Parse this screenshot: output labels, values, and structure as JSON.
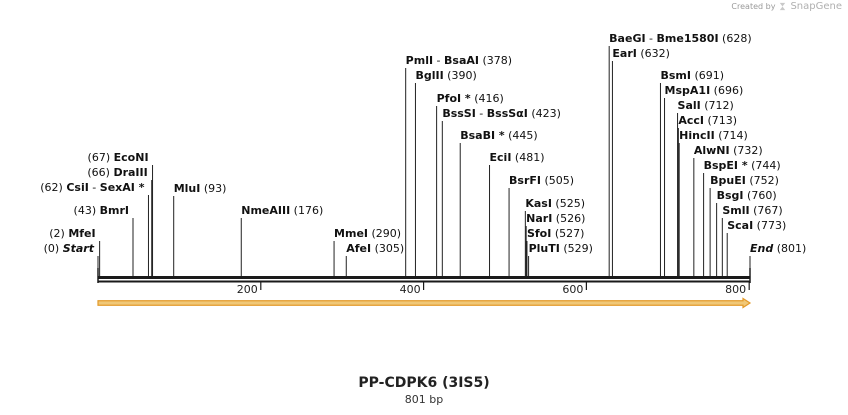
{
  "credit": {
    "text": "Created by",
    "brand": "SnapGene",
    "logo_icon": "snapgene-logo-icon"
  },
  "title": "PP-CDPK6 (3IS5)",
  "subtitle": "801 bp",
  "sequence_length": 801,
  "ruler_ticks": [
    200,
    400,
    600,
    800
  ],
  "colors": {
    "backbone": "#1a1a1a",
    "feature_fill": "#f0c878",
    "feature_stroke": "#e39a2a",
    "site_line": "#222222"
  },
  "features": [
    {
      "name": "orf-arrow",
      "start": 1,
      "end": 801,
      "direction": "forward"
    }
  ],
  "sites": [
    {
      "names": [
        "Start"
      ],
      "pos": 0,
      "pos_label": "(0)",
      "italic": true,
      "number_left": true
    },
    {
      "names": [
        "MfeI"
      ],
      "pos": 2,
      "pos_label": "(2)",
      "number_left": true
    },
    {
      "names": [
        "BmrI"
      ],
      "pos": 43,
      "pos_label": "(43)",
      "number_left": true
    },
    {
      "names": [
        "CsiI",
        "SexAI *"
      ],
      "pos": 62,
      "pos_label": "(62)",
      "number_left": true
    },
    {
      "names": [
        "DraIII"
      ],
      "pos": 66,
      "pos_label": "(66)",
      "number_left": true
    },
    {
      "names": [
        "EcoNI"
      ],
      "pos": 67,
      "pos_label": "(67)",
      "number_left": true
    },
    {
      "names": [
        "MluI"
      ],
      "pos": 93,
      "pos_label": "(93)"
    },
    {
      "names": [
        "NmeAIII"
      ],
      "pos": 176,
      "pos_label": "(176)"
    },
    {
      "names": [
        "MmeI"
      ],
      "pos": 290,
      "pos_label": "(290)"
    },
    {
      "names": [
        "AfeI"
      ],
      "pos": 305,
      "pos_label": "(305)"
    },
    {
      "names": [
        "PmlI",
        "BsaAI"
      ],
      "pos": 378,
      "pos_label": "(378)"
    },
    {
      "names": [
        "BglII"
      ],
      "pos": 390,
      "pos_label": "(390)"
    },
    {
      "names": [
        "PfoI *"
      ],
      "pos": 416,
      "pos_label": "(416)"
    },
    {
      "names": [
        "BssSI",
        "BssSαI"
      ],
      "pos": 423,
      "pos_label": "(423)"
    },
    {
      "names": [
        "BsaBI *"
      ],
      "pos": 445,
      "pos_label": "(445)"
    },
    {
      "names": [
        "EciI"
      ],
      "pos": 481,
      "pos_label": "(481)"
    },
    {
      "names": [
        "BsrFI"
      ],
      "pos": 505,
      "pos_label": "(505)"
    },
    {
      "names": [
        "KasI"
      ],
      "pos": 525,
      "pos_label": "(525)"
    },
    {
      "names": [
        "NarI"
      ],
      "pos": 526,
      "pos_label": "(526)"
    },
    {
      "names": [
        "SfoI"
      ],
      "pos": 527,
      "pos_label": "(527)"
    },
    {
      "names": [
        "PluTI"
      ],
      "pos": 529,
      "pos_label": "(529)"
    },
    {
      "names": [
        "BaeGI",
        "Bme1580I"
      ],
      "pos": 628,
      "pos_label": "(628)"
    },
    {
      "names": [
        "EarI"
      ],
      "pos": 632,
      "pos_label": "(632)"
    },
    {
      "names": [
        "BsmI"
      ],
      "pos": 691,
      "pos_label": "(691)"
    },
    {
      "names": [
        "MspA1I"
      ],
      "pos": 696,
      "pos_label": "(696)"
    },
    {
      "names": [
        "SalI"
      ],
      "pos": 712,
      "pos_label": "(712)"
    },
    {
      "names": [
        "AccI"
      ],
      "pos": 713,
      "pos_label": "(713)"
    },
    {
      "names": [
        "HincII"
      ],
      "pos": 714,
      "pos_label": "(714)"
    },
    {
      "names": [
        "AlwNI"
      ],
      "pos": 732,
      "pos_label": "(732)"
    },
    {
      "names": [
        "BspEI *"
      ],
      "pos": 744,
      "pos_label": "(744)"
    },
    {
      "names": [
        "BpuEI"
      ],
      "pos": 752,
      "pos_label": "(752)"
    },
    {
      "names": [
        "BsgI"
      ],
      "pos": 760,
      "pos_label": "(760)"
    },
    {
      "names": [
        "SmlI"
      ],
      "pos": 767,
      "pos_label": "(767)"
    },
    {
      "names": [
        "ScaI"
      ],
      "pos": 773,
      "pos_label": "(773)"
    },
    {
      "names": [
        "End"
      ],
      "pos": 801,
      "pos_label": "(801)",
      "italic": true
    }
  ]
}
